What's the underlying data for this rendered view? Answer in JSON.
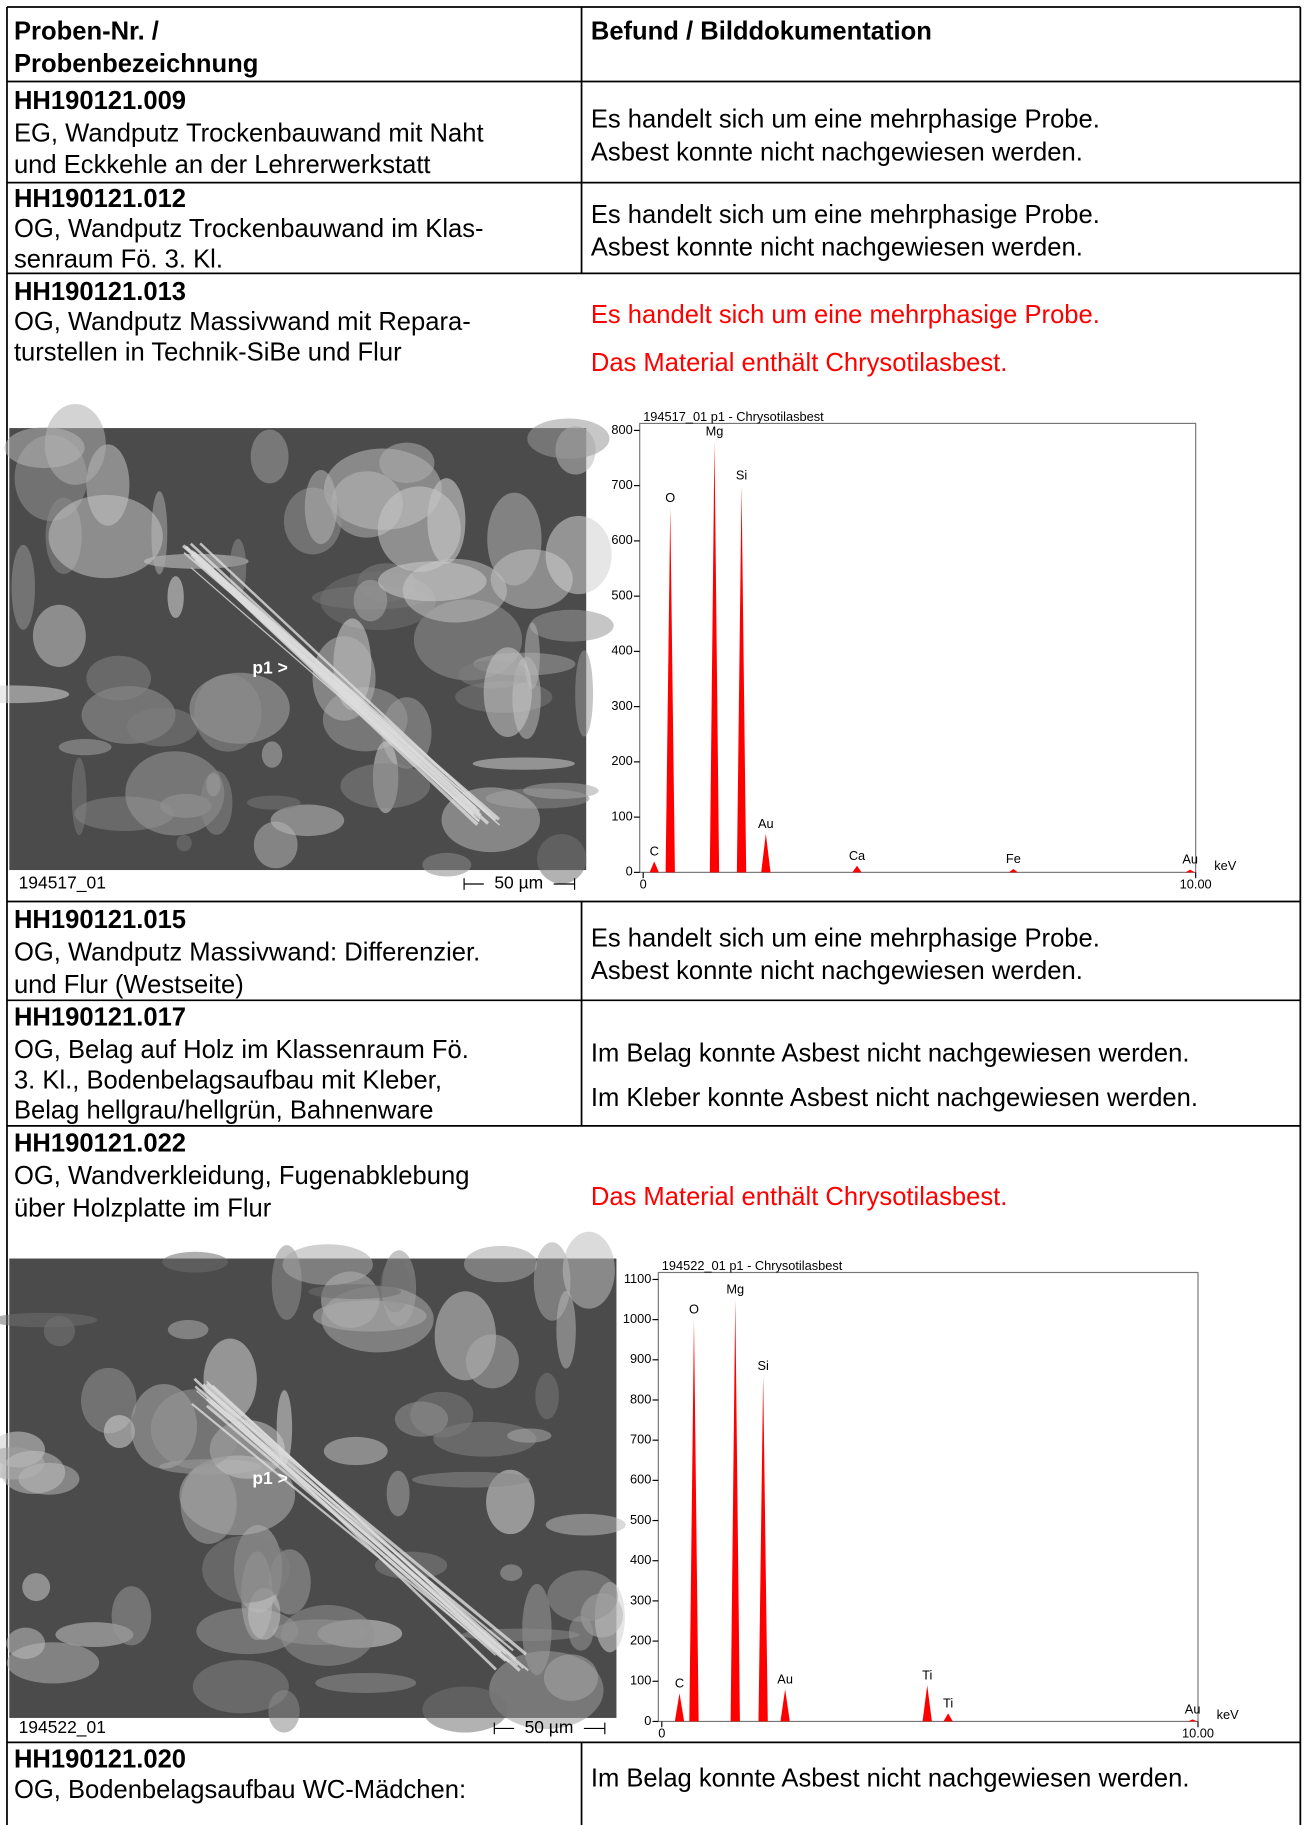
{
  "header": {
    "sample": [
      "Proben-Nr. /",
      "Probenbezeichnung"
    ],
    "finding": "Befund / Bilddokumentation"
  },
  "rows": [
    {
      "id": "HH190121.009",
      "description": [
        "EG, Wandputz Trockenbauwand mit Naht",
        "und Eckkehle an der Lehrerwerkstatt"
      ],
      "findings": [
        "Es handelt sich um eine mehrphasige Probe.",
        "Asbest konnte nicht nachgewiesen werden."
      ]
    },
    {
      "id": "HH190121.012",
      "description": [
        "OG, Wandputz Trockenbauwand im Klas-",
        "senraum Fö. 3. Kl."
      ],
      "findings": [
        "Es handelt sich um eine mehrphasige Probe.",
        "Asbest konnte nicht nachgewiesen werden."
      ]
    },
    {
      "id": "HH190121.013",
      "description": [
        "OG, Wandputz Massivwand mit Repara-",
        "turstellen in Technik-SiBe und Flur"
      ],
      "findings": [
        "Es handelt sich um eine mehrphasige Probe.",
        "Das Material enthält Chrysotilasbest."
      ],
      "findings_color": "#ff0000",
      "sem": {
        "label": "194517_01",
        "scale": "50 µm",
        "point": "p1 >"
      },
      "spectrum": {
        "title": "194517_01 p1 - Chrysotilasbest",
        "color": "#ff0000",
        "ylim": [
          0,
          800
        ],
        "yticks": [
          0,
          100,
          200,
          300,
          400,
          500,
          600,
          700,
          800
        ],
        "xlim": [
          0,
          10
        ],
        "xticks": [
          0,
          {
            "value": 10,
            "label": "10.00"
          }
        ],
        "unit": "keV",
        "peaks": [
          {
            "label": "C",
            "x": 0.2,
            "y": 20
          },
          {
            "label": "O",
            "x": 0.49,
            "y": 660
          },
          {
            "label": "Mg",
            "x": 1.29,
            "y": 780
          },
          {
            "label": "Si",
            "x": 1.78,
            "y": 700
          },
          {
            "label": "Au",
            "x": 2.22,
            "y": 70
          },
          {
            "label": "Ca",
            "x": 3.87,
            "y": 12
          },
          {
            "label": "Fe",
            "x": 6.7,
            "y": 6
          },
          {
            "label": "Au",
            "x": 9.9,
            "y": 5
          }
        ]
      }
    },
    {
      "id": "HH190121.015",
      "description": [
        "OG, Wandputz Massivwand: Differenzier.",
        "und Flur (Westseite)"
      ],
      "findings": [
        "Es handelt sich um eine mehrphasige Probe.",
        "Asbest konnte nicht nachgewiesen werden."
      ]
    },
    {
      "id": "HH190121.017",
      "description": [
        "OG, Belag auf Holz  im Klassenraum Fö.",
        "3. Kl., Bodenbelagsaufbau mit Kleber,",
        "Belag hellgrau/hellgrün, Bahnenware"
      ],
      "findings": [
        "Im Belag konnte Asbest nicht nachgewiesen werden.",
        "Im Kleber konnte Asbest nicht nachgewiesen werden."
      ]
    },
    {
      "id": "HH190121.022",
      "description": [
        "OG, Wandverkleidung, Fugenabklebung",
        "über Holzplatte im Flur"
      ],
      "findings": [
        "Das Material enthält Chrysotilasbest."
      ],
      "findings_color": "#ff0000",
      "sem": {
        "label": "194522_01",
        "scale": "50 µm",
        "point": "p1 >"
      },
      "spectrum": {
        "title": "194522_01 p1 - Chrysotilasbest",
        "color": "#ff0000",
        "ylim": [
          0,
          1100
        ],
        "yticks": [
          0,
          100,
          200,
          300,
          400,
          500,
          600,
          700,
          800,
          900,
          1000,
          1100
        ],
        "xlim": [
          0,
          10
        ],
        "xticks": [
          0,
          {
            "value": 10,
            "label": "10.00"
          }
        ],
        "unit": "keV",
        "peaks": [
          {
            "label": "C",
            "x": 0.33,
            "y": 70
          },
          {
            "label": "O",
            "x": 0.6,
            "y": 1000
          },
          {
            "label": "Mg",
            "x": 1.37,
            "y": 1050
          },
          {
            "label": "Si",
            "x": 1.89,
            "y": 860
          },
          {
            "label": "Au",
            "x": 2.3,
            "y": 80
          },
          {
            "label": "Ti",
            "x": 4.95,
            "y": 90
          },
          {
            "label": "Ti",
            "x": 5.34,
            "y": 20
          },
          {
            "label": "Au",
            "x": 9.9,
            "y": 5
          }
        ]
      }
    },
    {
      "id": "HH190121.020",
      "description": [
        "OG, Bodenbelagsaufbau WC-Mädchen:"
      ],
      "findings": [
        "Im Belag konnte Asbest nicht nachgewiesen werden."
      ]
    }
  ]
}
